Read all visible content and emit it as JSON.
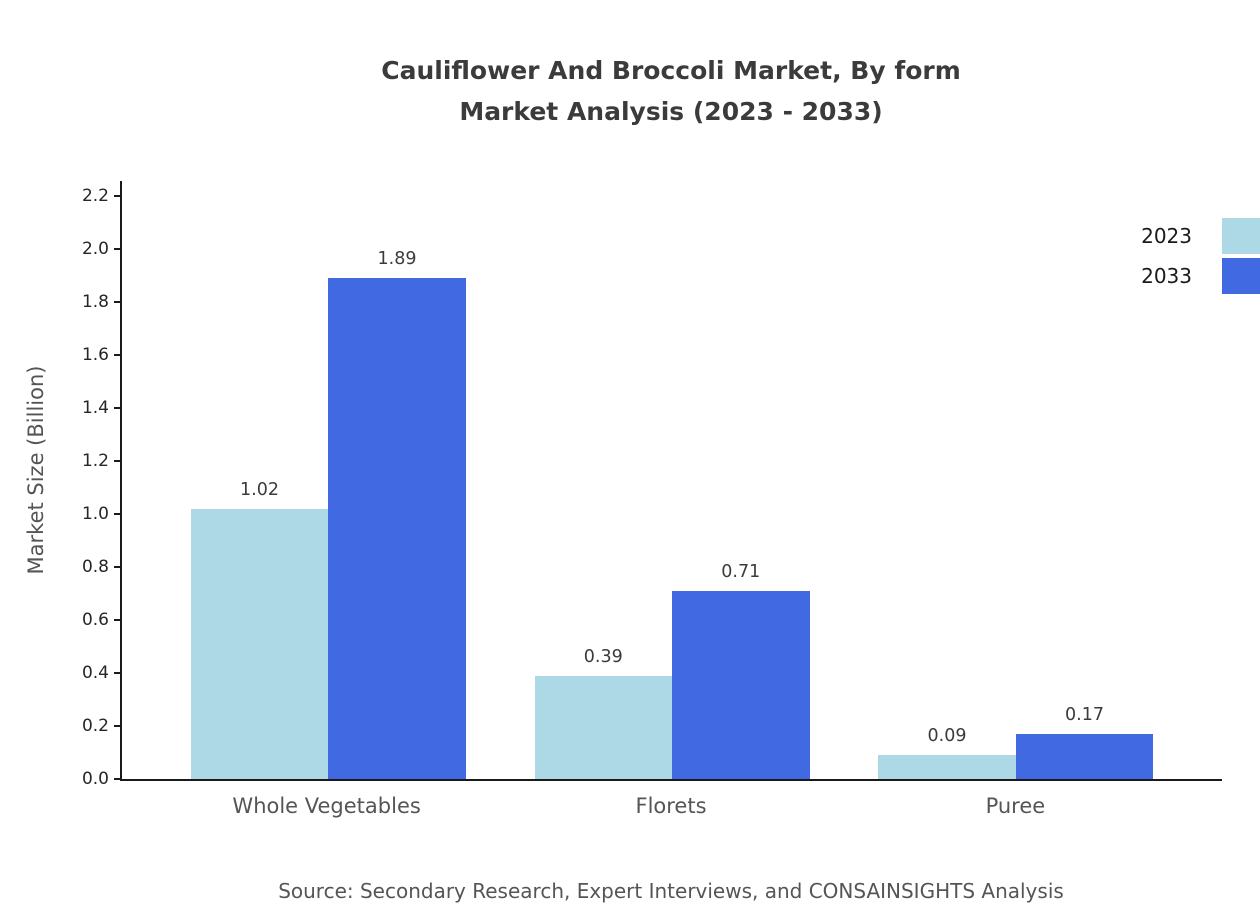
{
  "chart_data": {
    "type": "bar",
    "title_lines": [
      "Cauliflower And Broccoli Market, By form",
      "Market Analysis (2023 - 2033)"
    ],
    "categories": [
      "Whole Vegetables",
      "Florets",
      "Puree"
    ],
    "series": [
      {
        "name": "2023",
        "color": "#ADD8E6",
        "values": [
          1.02,
          0.39,
          0.09
        ]
      },
      {
        "name": "2033",
        "color": "#4169E1",
        "values": [
          1.89,
          0.71,
          0.17
        ]
      }
    ],
    "ylabel": "Market Size (Billion)",
    "ylim": [
      0,
      2.2
    ],
    "yticks": [
      0.0,
      0.2,
      0.4,
      0.6,
      0.8,
      1.0,
      1.2,
      1.4,
      1.6,
      1.8,
      2.0,
      2.2
    ],
    "grid": false,
    "legend_position": "top-right",
    "source": "Source: Secondary Research, Expert Interviews, and CONSAINSIGHTS Analysis"
  }
}
